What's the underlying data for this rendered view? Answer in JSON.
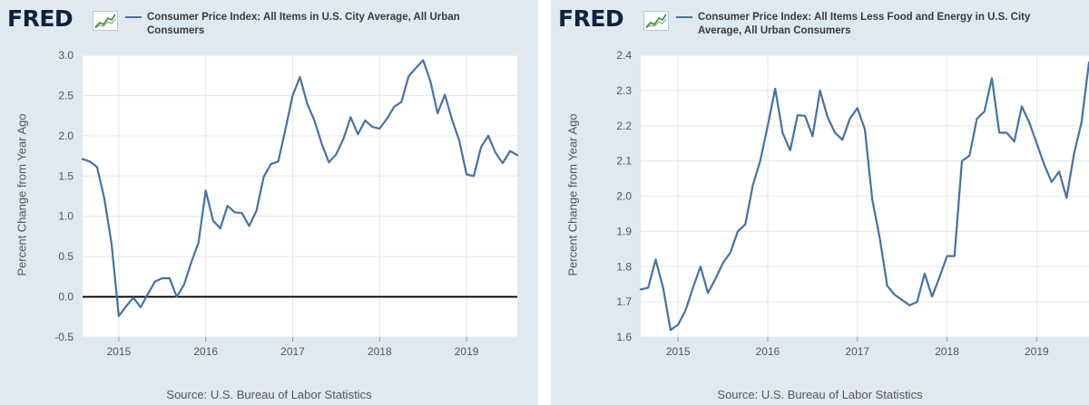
{
  "brand": {
    "logo_text": "FRED",
    "logo_mark": "fred-trend-chart-icon",
    "trademark": "®"
  },
  "chart_data": [
    {
      "type": "line",
      "title": "",
      "legend": {
        "placement": "top",
        "entries": [
          "Consumer Price Index: All Items in U.S. City Average, All Urban Consumers"
        ]
      },
      "legend_lines": [
        "Consumer Price Index: All Items in U.S. City Average, All Urban",
        "Consumers"
      ],
      "ylabel": "Percent Change from Year Ago",
      "xlabel": "",
      "source": "Source: U.S. Bureau of Labor Statistics",
      "ylim": [
        -0.5,
        3.0
      ],
      "yticks": [
        3.0,
        2.5,
        2.0,
        1.5,
        1.0,
        0.5,
        0.0,
        -0.5
      ],
      "ytick_labels": [
        "3.0",
        "2.5",
        "2.0",
        "1.5",
        "1.0",
        "0.5",
        "0.0",
        "-0.5"
      ],
      "xlim": [
        "2014-08",
        "2019-08"
      ],
      "xticks": [
        "2015",
        "2016",
        "2017",
        "2018",
        "2019"
      ],
      "grid": true,
      "zero_line": true,
      "line_color": "#4572a7",
      "series": [
        {
          "name": "Consumer Price Index: All Items in U.S. City Average, All Urban Consumers",
          "x": [
            "2014-08",
            "2014-09",
            "2014-10",
            "2014-11",
            "2014-12",
            "2015-01",
            "2015-02",
            "2015-03",
            "2015-04",
            "2015-05",
            "2015-06",
            "2015-07",
            "2015-08",
            "2015-09",
            "2015-10",
            "2015-11",
            "2015-12",
            "2016-01",
            "2016-02",
            "2016-03",
            "2016-04",
            "2016-05",
            "2016-06",
            "2016-07",
            "2016-08",
            "2016-09",
            "2016-10",
            "2016-11",
            "2016-12",
            "2017-01",
            "2017-02",
            "2017-03",
            "2017-04",
            "2017-05",
            "2017-06",
            "2017-07",
            "2017-08",
            "2017-09",
            "2017-10",
            "2017-11",
            "2017-12",
            "2018-01",
            "2018-02",
            "2018-03",
            "2018-04",
            "2018-05",
            "2018-06",
            "2018-07",
            "2018-08",
            "2018-09",
            "2018-10",
            "2018-11",
            "2018-12",
            "2019-01",
            "2019-02",
            "2019-03",
            "2019-04",
            "2019-05",
            "2019-06",
            "2019-07",
            "2019-08"
          ],
          "values": [
            1.71,
            1.68,
            1.61,
            1.22,
            0.66,
            -0.24,
            -0.12,
            -0.01,
            -0.13,
            0.03,
            0.19,
            0.23,
            0.23,
            0.0,
            0.15,
            0.43,
            0.67,
            1.32,
            0.95,
            0.85,
            1.13,
            1.05,
            1.04,
            0.88,
            1.07,
            1.49,
            1.65,
            1.68,
            2.08,
            2.5,
            2.73,
            2.4,
            2.19,
            1.9,
            1.67,
            1.77,
            1.96,
            2.23,
            2.02,
            2.19,
            2.11,
            2.09,
            2.21,
            2.36,
            2.42,
            2.74,
            2.84,
            2.94,
            2.68,
            2.28,
            2.51,
            2.2,
            1.94,
            1.52,
            1.5,
            1.86,
            2.0,
            1.79,
            1.66,
            1.81,
            1.76
          ]
        }
      ]
    },
    {
      "type": "line",
      "title": "",
      "legend": {
        "placement": "top",
        "entries": [
          "Consumer Price Index: All Items Less Food and Energy in U.S. City Average, All Urban Consumers"
        ]
      },
      "legend_lines": [
        "Consumer Price Index: All Items Less Food and Energy in U.S. City",
        "Average, All Urban Consumers"
      ],
      "ylabel": "Percent Change from Year Ago",
      "xlabel": "",
      "source": "Source: U.S. Bureau of Labor Statistics",
      "ylim": [
        1.6,
        2.4
      ],
      "yticks": [
        2.4,
        2.3,
        2.2,
        2.1,
        2.0,
        1.9,
        1.8,
        1.7,
        1.6
      ],
      "ytick_labels": [
        "2.4",
        "2.3",
        "2.2",
        "2.1",
        "2.0",
        "1.9",
        "1.8",
        "1.7",
        "1.6"
      ],
      "xlim": [
        "2014-08",
        "2019-08"
      ],
      "xticks": [
        "2015",
        "2016",
        "2017",
        "2018",
        "2019"
      ],
      "grid": true,
      "zero_line": false,
      "line_color": "#4572a7",
      "series": [
        {
          "name": "Consumer Price Index: All Items Less Food and Energy in U.S. City Average, All Urban Consumers",
          "x": [
            "2014-08",
            "2014-09",
            "2014-10",
            "2014-11",
            "2014-12",
            "2015-01",
            "2015-02",
            "2015-03",
            "2015-04",
            "2015-05",
            "2015-06",
            "2015-07",
            "2015-08",
            "2015-09",
            "2015-10",
            "2015-11",
            "2015-12",
            "2016-01",
            "2016-02",
            "2016-03",
            "2016-04",
            "2016-05",
            "2016-06",
            "2016-07",
            "2016-08",
            "2016-09",
            "2016-10",
            "2016-11",
            "2016-12",
            "2017-01",
            "2017-02",
            "2017-03",
            "2017-04",
            "2017-05",
            "2017-06",
            "2017-07",
            "2017-08",
            "2017-09",
            "2017-10",
            "2017-11",
            "2017-12",
            "2018-01",
            "2018-02",
            "2018-03",
            "2018-04",
            "2018-05",
            "2018-06",
            "2018-07",
            "2018-08",
            "2018-09",
            "2018-10",
            "2018-11",
            "2018-12",
            "2019-01",
            "2019-02",
            "2019-03",
            "2019-04",
            "2019-05",
            "2019-06",
            "2019-07",
            "2019-08"
          ],
          "values": [
            1.735,
            1.74,
            1.82,
            1.74,
            1.62,
            1.635,
            1.675,
            1.74,
            1.8,
            1.725,
            1.765,
            1.81,
            1.84,
            1.9,
            1.92,
            2.03,
            2.1,
            2.2,
            2.305,
            2.18,
            2.13,
            2.23,
            2.228,
            2.17,
            2.3,
            2.225,
            2.18,
            2.16,
            2.22,
            2.25,
            2.19,
            1.99,
            1.88,
            1.745,
            1.72,
            1.705,
            1.69,
            1.7,
            1.78,
            1.715,
            1.77,
            1.83,
            1.83,
            2.1,
            2.115,
            2.22,
            2.24,
            2.335,
            2.18,
            2.18,
            2.155,
            2.255,
            2.21,
            2.15,
            2.09,
            2.04,
            2.07,
            1.995,
            2.12,
            2.21,
            2.38
          ]
        }
      ]
    }
  ]
}
